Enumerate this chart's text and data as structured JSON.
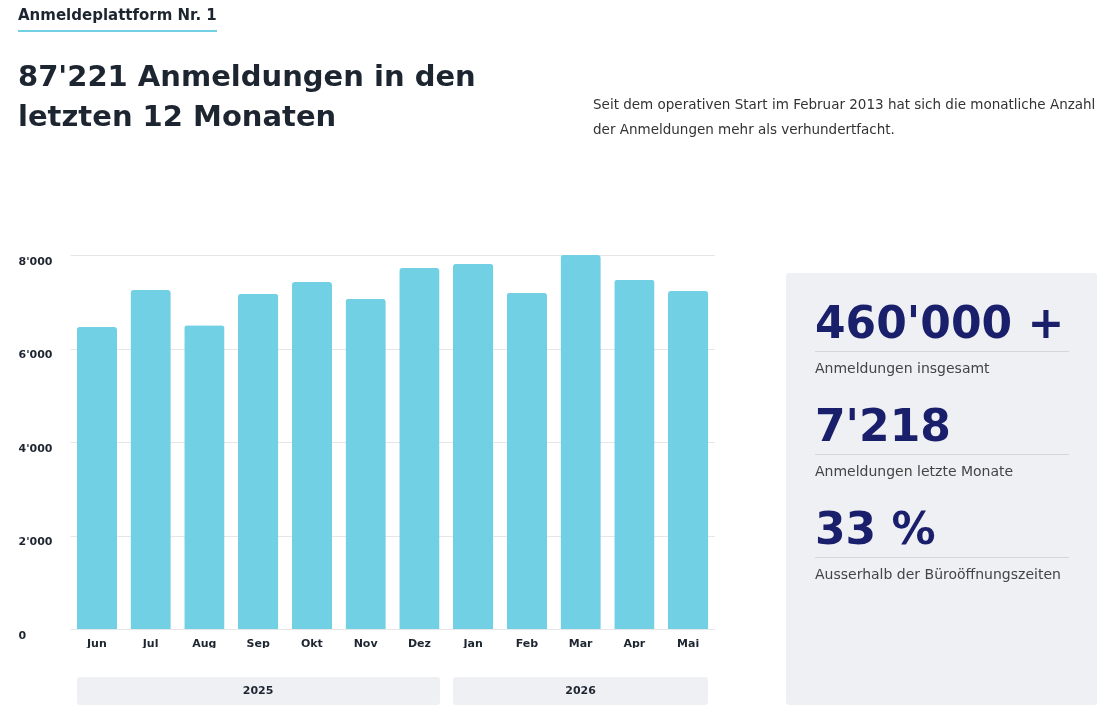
{
  "chart_data": [
    {
      "type": "bar",
      "title": "87'221 Anmeldungen in den letzten 12 Monaten",
      "subtitle": "Seit dem operativen Start im Februar 2013 hat sich die monatliche Anzahl der Anmeldungen mehr als verhundertfacht.",
      "annotations": [
        "Anmeldeplattform Nr. 1",
        "2025",
        "2026"
      ],
      "categories": [
        "Jun",
        "Jul",
        "Aug",
        "Sep",
        "Okt",
        "Nov",
        "Dez",
        "Jan",
        "Feb",
        "Mar",
        "Apr",
        "Mai"
      ],
      "values": [
        6460,
        7250,
        6500,
        7170,
        7420,
        7060,
        7720,
        7810,
        7190,
        8000,
        7470,
        7230
      ],
      "color": "#72d0e4",
      "ylim": [
        0,
        8000
      ],
      "yticks": [
        0,
        {
          "value": 2000,
          "label": "2'000"
        },
        {
          "value": 4000,
          "label": "4'000"
        },
        {
          "value": 6000,
          "label": "6'000"
        },
        {
          "value": 8000,
          "label": "8'000"
        }
      ],
      "grid": "y"
    },
    {
      "type": "other",
      "annotations": [
        "460'000 +",
        "Anmeldungen insgesamt",
        "7'218",
        "Anmeldungen letzte Monate",
        "33 %",
        "Ausserhalb der Büroöffnungszeiten"
      ]
    }
  ]
}
